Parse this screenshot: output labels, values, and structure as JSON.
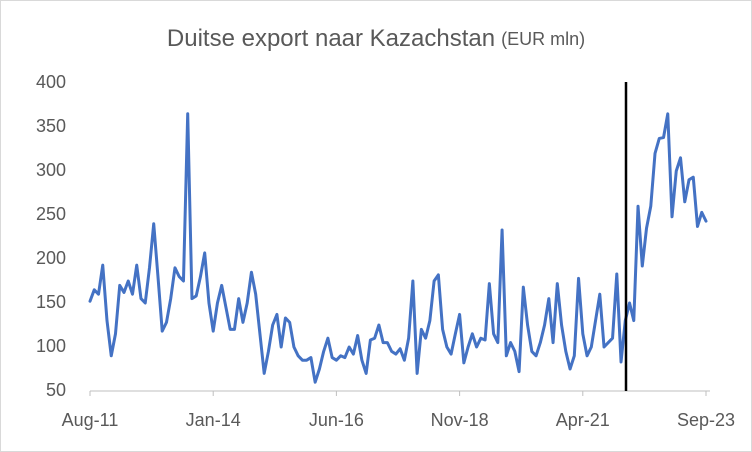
{
  "chart_data": {
    "type": "line",
    "title": "Duitse export naar Kazachstan",
    "subtitle": "(EUR mln)",
    "categories": [
      "Aug-11",
      null,
      null,
      null,
      null,
      null,
      null,
      null,
      null,
      null,
      null,
      null,
      null,
      null,
      null,
      null,
      null,
      null,
      null,
      null,
      null,
      null,
      null,
      null,
      null,
      null,
      null,
      null,
      null,
      "Jan-14",
      null,
      null,
      null,
      null,
      null,
      null,
      null,
      null,
      null,
      null,
      null,
      null,
      null,
      null,
      null,
      null,
      null,
      null,
      null,
      null,
      null,
      null,
      null,
      null,
      null,
      null,
      null,
      null,
      "Jun-16",
      null,
      null,
      null,
      null,
      null,
      null,
      null,
      null,
      null,
      null,
      null,
      null,
      null,
      null,
      null,
      null,
      null,
      null,
      null,
      null,
      null,
      null,
      null,
      null,
      null,
      null,
      null,
      null,
      "Nov-18",
      null,
      null,
      null,
      null,
      null,
      null,
      null,
      null,
      null,
      null,
      null,
      null,
      null,
      null,
      null,
      null,
      null,
      null,
      null,
      null,
      null,
      null,
      null,
      null,
      null,
      null,
      null,
      null,
      "Apr-21",
      null,
      null,
      null,
      null,
      null,
      null,
      null,
      null,
      null,
      null,
      null,
      null,
      null,
      null,
      null,
      null,
      null,
      null,
      null,
      null,
      null,
      null,
      null,
      null,
      null,
      null,
      null,
      null,
      "Sep-23"
    ],
    "series": [
      {
        "name": "Duitse export naar Kazachstan",
        "color": "#4472c4",
        "values": [
          152,
          165,
          160,
          193,
          130,
          90,
          115,
          170,
          162,
          175,
          160,
          193,
          155,
          150,
          190,
          240,
          180,
          118,
          128,
          155,
          190,
          180,
          175,
          365,
          155,
          158,
          180,
          207,
          150,
          118,
          150,
          170,
          145,
          120,
          120,
          155,
          128,
          150,
          185,
          160,
          115,
          70,
          95,
          125,
          137,
          100,
          133,
          128,
          100,
          90,
          85,
          85,
          88,
          60,
          75,
          95,
          110,
          88,
          85,
          90,
          88,
          100,
          92,
          113,
          85,
          70,
          108,
          110,
          125,
          105,
          105,
          95,
          92,
          98,
          85,
          110,
          175,
          70,
          120,
          110,
          130,
          175,
          182,
          120,
          100,
          92,
          115,
          137,
          82,
          100,
          115,
          100,
          110,
          108,
          172,
          115,
          105,
          233,
          90,
          105,
          95,
          72,
          168,
          125,
          95,
          90,
          105,
          125,
          155,
          105,
          172,
          125,
          95,
          75,
          90,
          178,
          115,
          90,
          100,
          130,
          160,
          100,
          105,
          110,
          183,
          83,
          130,
          150,
          130,
          260,
          192,
          235,
          260,
          320,
          337,
          338,
          365,
          248,
          300,
          315,
          265,
          290,
          293,
          237,
          253,
          243
        ]
      }
    ],
    "ylim": [
      50,
      400
    ],
    "yticks": [
      50,
      100,
      150,
      200,
      250,
      300,
      350,
      400
    ],
    "grid": false
  }
}
